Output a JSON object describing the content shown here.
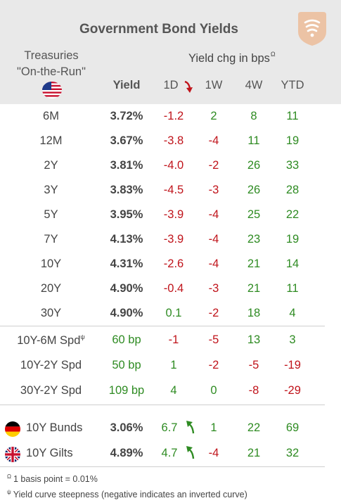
{
  "header": {
    "title": "Government Bond Yields",
    "treasuries_line1": "Treasuries",
    "treasuries_line2": "\"On-the-Run\"",
    "yield_chg_label": "Yield chg in bps",
    "yield_chg_sup": "Ω",
    "columns": {
      "yield": "Yield",
      "d1": "1D",
      "w1": "1W",
      "w4": "4W",
      "ytd": "YTD"
    }
  },
  "treasury_rows": [
    {
      "label": "6M",
      "yield": "3.72%",
      "d1": "-1.2",
      "w1": "2",
      "w4": "8",
      "ytd": "11"
    },
    {
      "label": "12M",
      "yield": "3.67%",
      "d1": "-3.8",
      "w1": "-4",
      "w4": "11",
      "ytd": "19"
    },
    {
      "label": "2Y",
      "yield": "3.81%",
      "d1": "-4.0",
      "w1": "-2",
      "w4": "26",
      "ytd": "33"
    },
    {
      "label": "3Y",
      "yield": "3.83%",
      "d1": "-4.5",
      "w1": "-3",
      "w4": "26",
      "ytd": "28"
    },
    {
      "label": "5Y",
      "yield": "3.95%",
      "d1": "-3.9",
      "w1": "-4",
      "w4": "25",
      "ytd": "22"
    },
    {
      "label": "7Y",
      "yield": "4.13%",
      "d1": "-3.9",
      "w1": "-4",
      "w4": "23",
      "ytd": "19"
    },
    {
      "label": "10Y",
      "yield": "4.31%",
      "d1": "-2.6",
      "w1": "-4",
      "w4": "21",
      "ytd": "14"
    },
    {
      "label": "20Y",
      "yield": "4.90%",
      "d1": "-0.4",
      "w1": "-3",
      "w4": "21",
      "ytd": "11"
    },
    {
      "label": "30Y",
      "yield": "4.90%",
      "d1": "0.1",
      "w1": "-2",
      "w4": "18",
      "ytd": "4"
    }
  ],
  "spread_rows": [
    {
      "label": "10Y-6M Spd",
      "sup": "ψ",
      "yield": "60 bp",
      "d1": "-1",
      "w1": "-5",
      "w4": "13",
      "ytd": "3"
    },
    {
      "label": "10Y-2Y Spd",
      "sup": "",
      "yield": "50 bp",
      "d1": "1",
      "w1": "-2",
      "w4": "-5",
      "ytd": "-19"
    },
    {
      "label": "30Y-2Y Spd",
      "sup": "",
      "yield": "109 bp",
      "d1": "4",
      "w1": "0",
      "w4": "-8",
      "ytd": "-29"
    }
  ],
  "intl_rows": [
    {
      "label": "10Y Bunds",
      "flag": "germany-flag-icon",
      "yield": "3.06%",
      "d1": "6.7",
      "w1": "1",
      "w4": "22",
      "ytd": "69"
    },
    {
      "label": "10Y Gilts",
      "flag": "uk-flag-icon",
      "yield": "4.89%",
      "d1": "4.7",
      "w1": "-4",
      "w4": "21",
      "ytd": "32"
    }
  ],
  "footnotes": {
    "bp_sup": "Ω",
    "bp_text": "1 basis point = 0.01%",
    "steep_sup": "ψ",
    "steep_text": "Yield curve steepness (negative indicates an inverted curve)"
  },
  "colors": {
    "positive": "#2e8b22",
    "negative": "#c0141b",
    "header_bg": "#e9e9e9",
    "logo": "#e8b48f"
  },
  "icons": [
    "us-flag-icon",
    "down-arrow-icon",
    "up-arrow-icon",
    "germany-flag-icon",
    "uk-flag-icon",
    "logo-icon"
  ]
}
